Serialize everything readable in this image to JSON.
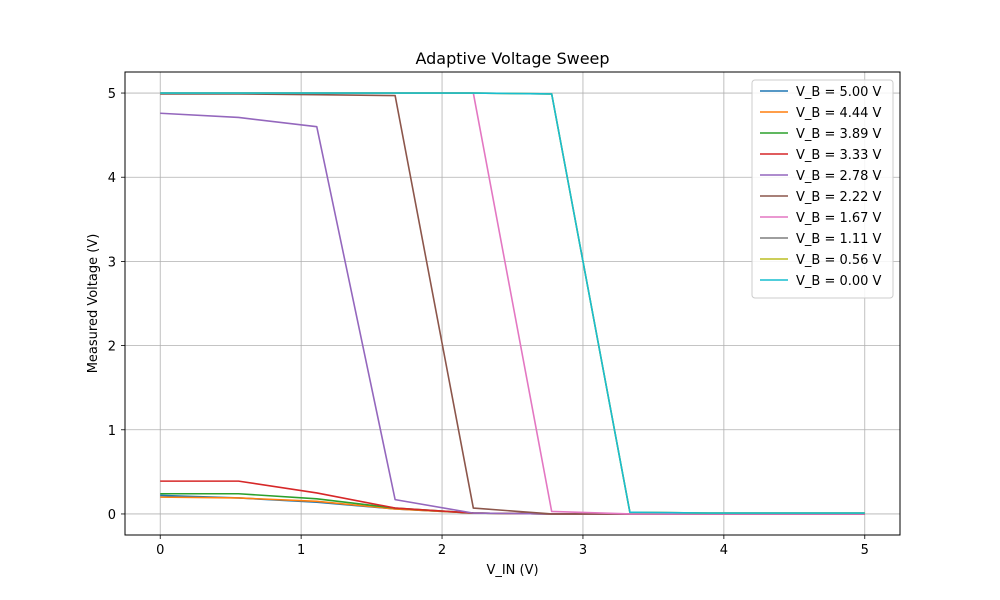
{
  "chart_data": {
    "type": "line",
    "title": "Adaptive Voltage Sweep",
    "xlabel": "V_IN (V)",
    "ylabel": "Measured Voltage (V)",
    "xlim": [
      -0.25,
      5.25
    ],
    "ylim": [
      -0.25,
      5.25
    ],
    "xticks": [
      0,
      1,
      2,
      3,
      4,
      5
    ],
    "yticks": [
      0,
      1,
      2,
      3,
      4,
      5
    ],
    "grid": true,
    "legend_position": "top-right",
    "x": [
      0,
      0.556,
      1.111,
      1.667,
      2.222,
      2.778,
      3.333,
      3.889,
      4.444,
      5.0
    ],
    "series": [
      {
        "name": "V_B = 5.00 V",
        "color": "#1f77b4",
        "values": [
          0.22,
          0.19,
          0.14,
          0.06,
          0.01,
          0.0,
          0.0,
          0.0,
          0.0,
          0.0
        ]
      },
      {
        "name": "V_B = 4.44 V",
        "color": "#ff7f0e",
        "values": [
          0.2,
          0.19,
          0.15,
          0.06,
          0.01,
          0.0,
          0.0,
          0.0,
          0.0,
          0.0
        ]
      },
      {
        "name": "V_B = 3.89 V",
        "color": "#2ca02c",
        "values": [
          0.24,
          0.24,
          0.18,
          0.07,
          0.01,
          0.0,
          0.0,
          0.0,
          0.0,
          0.0
        ]
      },
      {
        "name": "V_B = 3.33 V",
        "color": "#d62728",
        "values": [
          0.39,
          0.39,
          0.25,
          0.07,
          0.01,
          0.0,
          0.0,
          0.0,
          0.0,
          0.0
        ]
      },
      {
        "name": "V_B = 2.78 V",
        "color": "#9467bd",
        "values": [
          4.76,
          4.71,
          4.6,
          0.17,
          0.01,
          0.0,
          0.0,
          0.0,
          0.0,
          0.0
        ]
      },
      {
        "name": "V_B = 2.22 V",
        "color": "#8c564b",
        "values": [
          4.99,
          4.99,
          4.98,
          4.97,
          0.07,
          0.0,
          0.0,
          0.0,
          0.0,
          0.0
        ]
      },
      {
        "name": "V_B = 1.67 V",
        "color": "#e377c2",
        "values": [
          5.0,
          5.0,
          5.0,
          5.0,
          5.0,
          0.03,
          0.0,
          0.0,
          0.0,
          0.0
        ]
      },
      {
        "name": "V_B = 1.11 V",
        "color": "#7f7f7f",
        "values": [
          5.0,
          5.0,
          5.0,
          5.0,
          5.0,
          4.99,
          0.02,
          0.01,
          0.01,
          0.01
        ]
      },
      {
        "name": "V_B = 0.56 V",
        "color": "#bcbd22",
        "values": [
          5.0,
          5.0,
          5.0,
          5.0,
          5.0,
          4.99,
          0.02,
          0.01,
          0.01,
          0.01
        ]
      },
      {
        "name": "V_B = 0.00 V",
        "color": "#17becf",
        "values": [
          5.0,
          5.0,
          5.0,
          5.0,
          5.0,
          4.99,
          0.02,
          0.01,
          0.01,
          0.01
        ]
      }
    ]
  }
}
